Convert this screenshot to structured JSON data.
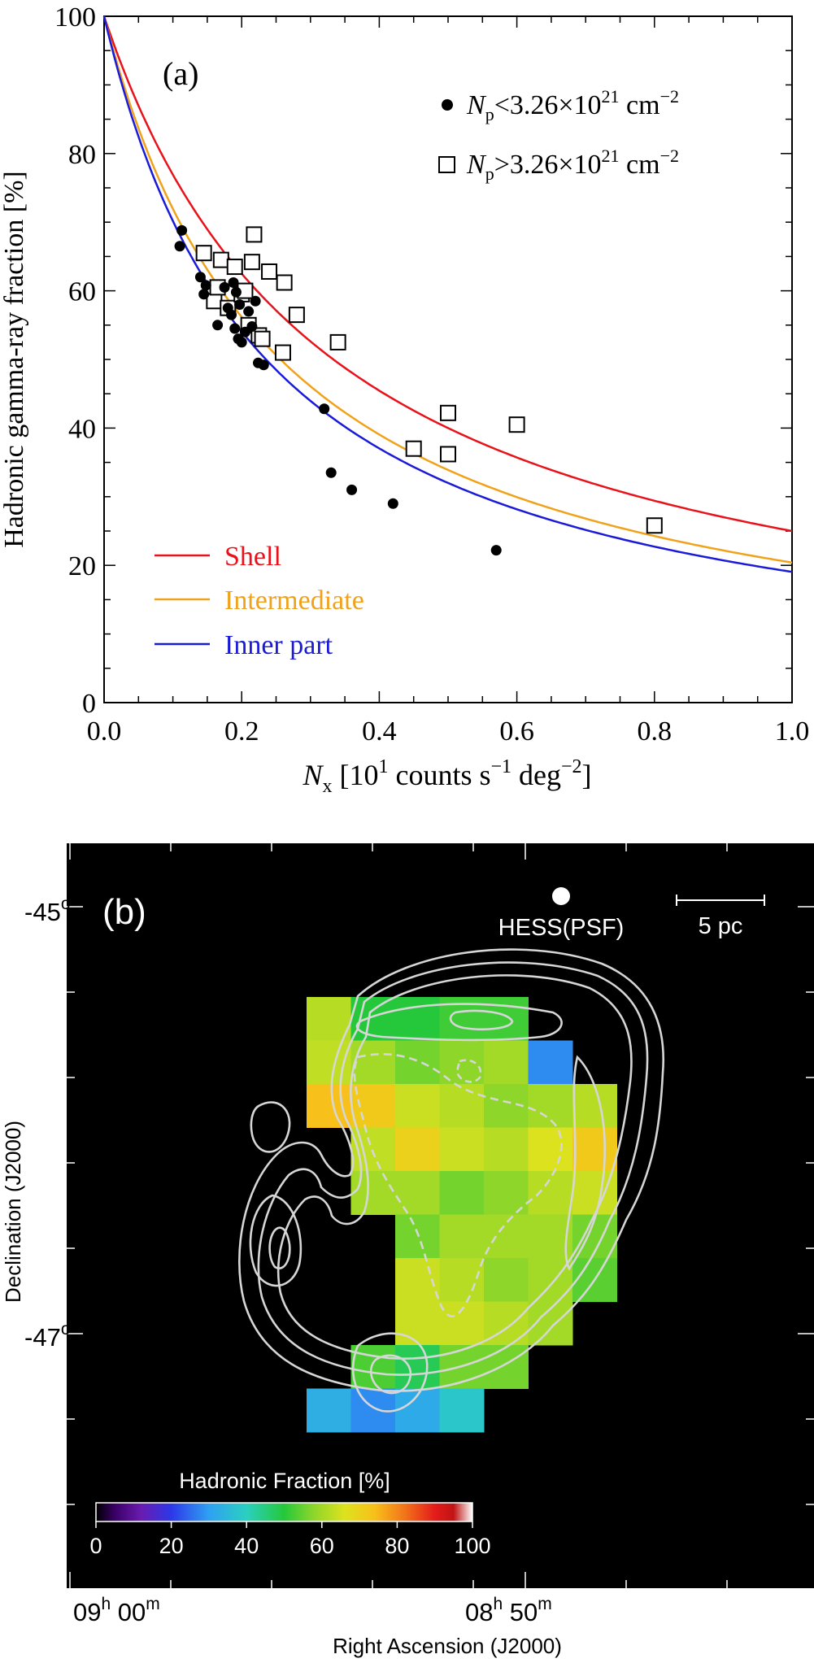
{
  "colors": {
    "shell": "#e8121a",
    "intermediate": "#f0a21a",
    "inner": "#1a1ad8",
    "contour": "#d6d6d6",
    "map_bg": "#000000"
  },
  "chart_data": [
    {
      "type": "scatter",
      "panel_label": "(a)",
      "ylabel": "Hadronic gamma-ray fraction [%]",
      "xlabel": {
        "sym": "N",
        "sub": "x",
        "pre": " [10",
        "e1": "1",
        "mid": " counts s",
        "e2": "−1",
        "mid2": " deg",
        "e3": "−2",
        "post": "]"
      },
      "xlim": [
        0,
        1
      ],
      "ylim": [
        0,
        100
      ],
      "xticks": [
        "0.0",
        "0.2",
        "0.4",
        "0.6",
        "0.8",
        "1.0"
      ],
      "yticks": [
        "0",
        "20",
        "40",
        "60",
        "80",
        "100"
      ],
      "legend_points": [
        {
          "sym": "N",
          "sub": "p",
          "rel": "<3.26×10",
          "exp": "21",
          "unit": " cm",
          "uexp": "−2"
        },
        {
          "sym": "N",
          "sub": "p",
          "rel": ">3.26×10",
          "exp": "21",
          "unit": " cm",
          "uexp": "−2"
        }
      ],
      "curves": [
        {
          "name": "Shell",
          "color": "#e8121a",
          "k": 3.0
        },
        {
          "name": "Intermediate",
          "color": "#f0a21a",
          "k": 3.9
        },
        {
          "name": "Inner part",
          "color": "#1a1ad8",
          "k": 4.25
        }
      ],
      "series": [
        {
          "name": "low Np",
          "marker": "filled-circle",
          "points": [
            [
              0.11,
              66.5
            ],
            [
              0.113,
              68.8
            ],
            [
              0.14,
              62.0
            ],
            [
              0.145,
              59.5
            ],
            [
              0.148,
              60.8
            ],
            [
              0.165,
              55.0
            ],
            [
              0.175,
              60.5
            ],
            [
              0.18,
              57.5
            ],
            [
              0.185,
              56.5
            ],
            [
              0.188,
              61.2
            ],
            [
              0.19,
              54.5
            ],
            [
              0.192,
              59.8
            ],
            [
              0.195,
              53.0
            ],
            [
              0.197,
              58.0
            ],
            [
              0.2,
              52.5
            ],
            [
              0.205,
              54.0
            ],
            [
              0.21,
              57.0
            ],
            [
              0.215,
              54.8
            ],
            [
              0.22,
              58.5
            ],
            [
              0.224,
              49.5
            ],
            [
              0.232,
              49.2
            ],
            [
              0.32,
              42.8
            ],
            [
              0.33,
              33.5
            ],
            [
              0.36,
              31.0
            ],
            [
              0.42,
              29.0
            ],
            [
              0.57,
              22.2
            ]
          ]
        },
        {
          "name": "high Np",
          "marker": "open-square",
          "points": [
            [
              0.145,
              65.5
            ],
            [
              0.16,
              58.5
            ],
            [
              0.165,
              60.5
            ],
            [
              0.17,
              64.5
            ],
            [
              0.18,
              57.5
            ],
            [
              0.19,
              63.5
            ],
            [
              0.2,
              59.5
            ],
            [
              0.205,
              60.0
            ],
            [
              0.21,
              55.0
            ],
            [
              0.215,
              64.2
            ],
            [
              0.218,
              68.2
            ],
            [
              0.225,
              53.5
            ],
            [
              0.23,
              53.0
            ],
            [
              0.24,
              62.8
            ],
            [
              0.26,
              51.0
            ],
            [
              0.262,
              61.2
            ],
            [
              0.28,
              56.5
            ],
            [
              0.34,
              52.5
            ],
            [
              0.45,
              37.0
            ],
            [
              0.5,
              42.2
            ],
            [
              0.5,
              36.2
            ],
            [
              0.6,
              40.5
            ],
            [
              0.8,
              25.8
            ]
          ]
        }
      ]
    },
    {
      "type": "heatmap",
      "panel_label": "(b)",
      "title_psf": "HESS(PSF)",
      "scale_label": "5 pc",
      "ylabel": "Declination (J2000)",
      "xlabel": "Right Ascension (J2000)",
      "dec_ticks": [
        {
          "base": "-45",
          "sup": "o"
        },
        {
          "base": "-47",
          "sup": "o"
        }
      ],
      "ra_ticks": [
        {
          "hh": "09",
          "h": "h",
          "mm": "00",
          "m": "m"
        },
        {
          "hh": "08",
          "h": "h",
          "mm": "50",
          "m": "m"
        }
      ],
      "colorbar": {
        "title": "Hadronic Fraction [%]",
        "ticks": [
          "0",
          "20",
          "40",
          "60",
          "80",
          "100"
        ],
        "range": [
          0,
          100
        ]
      },
      "grid_values": [
        [
          62,
          50,
          50,
          52,
          52,
          null,
          null
        ],
        [
          63,
          60,
          56,
          58,
          60,
          28,
          null
        ],
        [
          74,
          72,
          64,
          62,
          58,
          60,
          62
        ],
        [
          null,
          63,
          70,
          64,
          62,
          66,
          72
        ],
        [
          null,
          60,
          60,
          56,
          58,
          62,
          64
        ],
        [
          null,
          null,
          56,
          60,
          60,
          60,
          56
        ],
        [
          null,
          null,
          64,
          62,
          58,
          60,
          54
        ],
        [
          null,
          null,
          64,
          64,
          62,
          60,
          null
        ],
        [
          null,
          53,
          48,
          56,
          56,
          null,
          null
        ],
        [
          33,
          28,
          32,
          38,
          null,
          null,
          null
        ]
      ]
    }
  ]
}
